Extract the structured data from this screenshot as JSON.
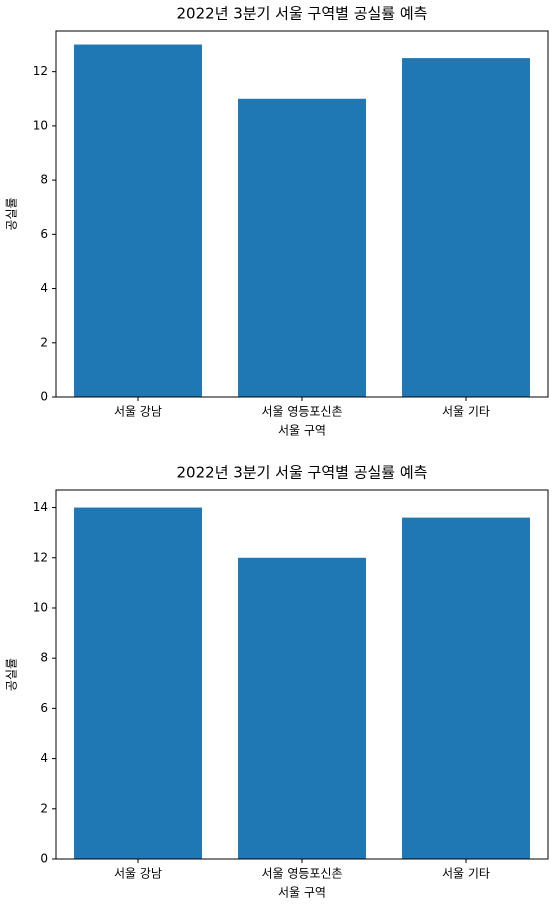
{
  "chart_data": [
    {
      "type": "bar",
      "title": "2022년 3분기 서울 구역별 공실률 예측",
      "x_label": "서울 구역",
      "y_label": "공실률",
      "categories": [
        "서울 강남",
        "서울 영등포신촌",
        "서울 기타"
      ],
      "values": [
        13,
        11,
        12.5
      ],
      "color": "#1f77b4",
      "ylim": [
        0,
        13.5
      ],
      "yticks": [
        0,
        2,
        4,
        6,
        8,
        10,
        12
      ]
    },
    {
      "type": "bar",
      "title": "2022년 3분기 서울 구역별 공실률 예측",
      "x_label": "서울 구역",
      "y_label": "공실률",
      "categories": [
        "서울 강남",
        "서울 영등포신촌",
        "서울 기타"
      ],
      "values": [
        14,
        12,
        13.6
      ],
      "color": "#1f77b4",
      "ylim": [
        0,
        14.7
      ],
      "yticks": [
        0,
        2,
        4,
        6,
        8,
        10,
        12,
        14
      ]
    }
  ]
}
